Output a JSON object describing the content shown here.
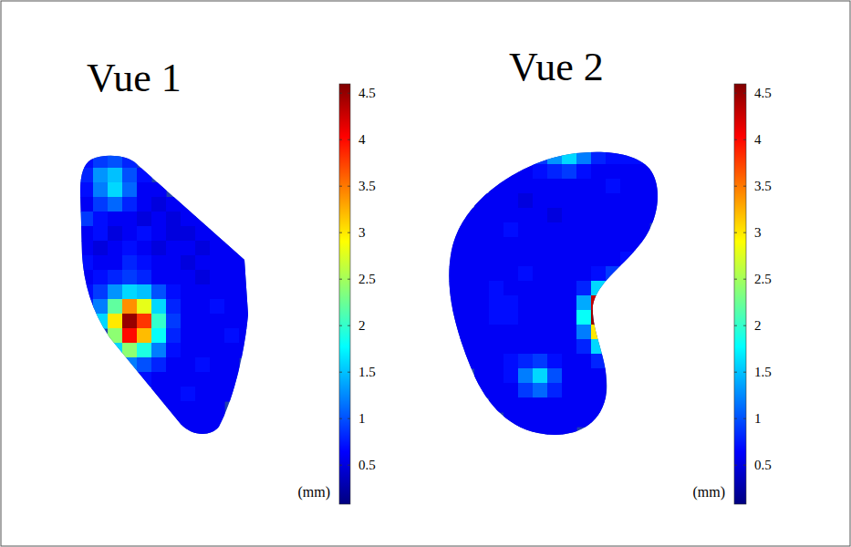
{
  "chart_data": [
    {
      "type": "heatmap",
      "title": "Vue 1",
      "clim": [
        0.08,
        4.6
      ],
      "cticks": [
        0.5,
        1,
        1.5,
        2,
        2.5,
        3,
        3.5,
        4,
        4.5
      ],
      "colorbar_label": "(mm)",
      "cells": [
        [
          0.7,
          0.9,
          1.0,
          0.8,
          null,
          null,
          null,
          null,
          null,
          null,
          null,
          null
        ],
        [
          0.8,
          1.3,
          1.5,
          1.0,
          0.7,
          null,
          null,
          null,
          null,
          null,
          null,
          null
        ],
        [
          0.7,
          1.2,
          1.6,
          1.1,
          0.6,
          0.6,
          null,
          null,
          null,
          null,
          null,
          null
        ],
        [
          0.6,
          0.9,
          1.1,
          0.8,
          0.6,
          0.5,
          0.6,
          0.6,
          null,
          null,
          null,
          null
        ],
        [
          0.9,
          0.7,
          0.6,
          0.6,
          0.5,
          0.6,
          0.5,
          0.6,
          0.6,
          null,
          null,
          null
        ],
        [
          0.6,
          0.7,
          0.5,
          0.6,
          0.7,
          0.6,
          0.5,
          0.5,
          0.6,
          0.6,
          null,
          null
        ],
        [
          0.6,
          0.5,
          0.6,
          0.7,
          0.6,
          0.5,
          0.6,
          0.6,
          0.5,
          0.6,
          0.6,
          null
        ],
        [
          0.7,
          0.6,
          0.6,
          0.8,
          0.7,
          0.6,
          0.6,
          0.5,
          0.6,
          0.6,
          0.6,
          0.6
        ],
        [
          0.6,
          0.7,
          0.8,
          0.9,
          0.8,
          0.6,
          0.6,
          0.6,
          0.5,
          0.6,
          0.6,
          0.6
        ],
        [
          0.7,
          0.9,
          1.3,
          1.6,
          1.5,
          1.0,
          0.7,
          0.6,
          0.6,
          0.6,
          0.6,
          0.6
        ],
        [
          0.8,
          1.2,
          2.2,
          3.4,
          2.8,
          1.6,
          0.8,
          0.6,
          0.6,
          0.7,
          0.6,
          0.6
        ],
        [
          null,
          1.6,
          3.0,
          4.5,
          3.8,
          2.0,
          0.9,
          0.6,
          0.6,
          0.6,
          0.6,
          0.6
        ],
        [
          null,
          null,
          2.4,
          4.0,
          3.2,
          1.8,
          0.8,
          0.6,
          0.6,
          0.6,
          0.7,
          0.6
        ],
        [
          null,
          null,
          1.6,
          2.4,
          1.9,
          1.2,
          0.7,
          0.6,
          0.6,
          0.6,
          0.6,
          0.6
        ],
        [
          null,
          null,
          null,
          1.2,
          1.0,
          0.8,
          0.6,
          0.6,
          0.7,
          0.6,
          0.6,
          null
        ],
        [
          null,
          null,
          null,
          null,
          0.7,
          0.6,
          0.6,
          0.6,
          0.6,
          0.6,
          0.6,
          null
        ],
        [
          null,
          null,
          null,
          null,
          null,
          0.6,
          0.6,
          0.7,
          0.6,
          0.6,
          0.6,
          null
        ],
        [
          null,
          null,
          null,
          null,
          null,
          0.6,
          0.6,
          0.6,
          0.6,
          0.6,
          null,
          null
        ],
        [
          null,
          null,
          null,
          null,
          null,
          null,
          0.6,
          0.6,
          0.6,
          0.6,
          null,
          null
        ],
        [
          null,
          null,
          null,
          null,
          null,
          null,
          null,
          0.6,
          0.6,
          0.6,
          null,
          null
        ]
      ]
    },
    {
      "type": "heatmap",
      "title": "Vue 2",
      "clim": [
        0.08,
        4.6
      ],
      "cticks": [
        0.5,
        1,
        1.5,
        2,
        2.5,
        3,
        3.5,
        4,
        4.5
      ],
      "colorbar_label": "(mm)",
      "cells": [
        [
          null,
          null,
          null,
          null,
          null,
          null,
          0.9,
          1.3,
          1.6,
          1.2,
          0.8,
          0.7,
          0.7,
          0.7,
          null
        ],
        [
          null,
          null,
          null,
          null,
          0.6,
          0.6,
          0.7,
          0.8,
          0.9,
          0.7,
          0.6,
          0.6,
          0.6,
          0.6,
          0.6
        ],
        [
          null,
          null,
          null,
          0.6,
          0.6,
          0.6,
          0.6,
          0.6,
          0.6,
          0.6,
          0.6,
          0.7,
          0.6,
          0.6,
          0.6
        ],
        [
          null,
          null,
          0.6,
          0.6,
          0.6,
          0.5,
          0.6,
          0.6,
          0.6,
          0.6,
          0.6,
          0.6,
          0.6,
          0.6,
          0.6
        ],
        [
          null,
          0.6,
          0.6,
          0.6,
          0.6,
          0.6,
          0.6,
          0.5,
          0.6,
          0.6,
          0.6,
          0.6,
          0.6,
          0.6,
          0.6
        ],
        [
          0.6,
          0.6,
          0.6,
          0.6,
          0.7,
          0.6,
          0.6,
          0.6,
          0.6,
          0.6,
          0.6,
          0.6,
          0.6,
          0.6,
          null
        ],
        [
          0.6,
          0.6,
          0.6,
          0.6,
          0.6,
          0.6,
          0.6,
          0.6,
          0.6,
          0.6,
          0.6,
          0.6,
          0.6,
          0.6,
          null
        ],
        [
          0.6,
          0.6,
          0.6,
          0.6,
          0.6,
          0.6,
          0.6,
          0.6,
          0.6,
          0.6,
          0.6,
          0.6,
          0.7,
          null,
          null
        ],
        [
          0.6,
          0.6,
          0.6,
          0.6,
          0.6,
          0.7,
          0.6,
          0.6,
          0.6,
          0.6,
          0.7,
          0.9,
          null,
          null,
          null
        ],
        [
          0.6,
          0.6,
          0.6,
          0.7,
          0.6,
          0.6,
          0.6,
          0.6,
          0.6,
          0.8,
          1.6,
          null,
          null,
          null,
          null
        ],
        [
          0.6,
          0.6,
          0.6,
          0.7,
          0.7,
          0.6,
          0.6,
          0.6,
          0.6,
          1.4,
          4.3,
          null,
          null,
          null,
          null
        ],
        [
          0.6,
          0.6,
          0.6,
          0.7,
          0.7,
          0.6,
          0.6,
          0.6,
          0.6,
          1.8,
          4.5,
          null,
          null,
          null,
          null
        ],
        [
          0.6,
          0.6,
          0.6,
          0.6,
          0.6,
          0.6,
          0.6,
          0.6,
          0.6,
          1.2,
          3.0,
          null,
          null,
          null,
          null
        ],
        [
          null,
          0.6,
          0.6,
          0.6,
          0.6,
          0.6,
          0.6,
          0.6,
          0.6,
          0.8,
          1.6,
          null,
          null,
          null,
          null
        ],
        [
          null,
          0.6,
          0.6,
          0.6,
          0.7,
          0.8,
          0.9,
          0.7,
          0.6,
          0.6,
          0.8,
          null,
          null,
          null,
          null
        ],
        [
          null,
          null,
          0.6,
          0.6,
          0.7,
          1.2,
          1.6,
          1.0,
          0.6,
          0.6,
          0.6,
          null,
          null,
          null,
          null
        ],
        [
          null,
          null,
          0.6,
          0.6,
          0.6,
          0.9,
          1.1,
          0.8,
          0.6,
          0.6,
          0.6,
          null,
          null,
          null,
          null
        ],
        [
          null,
          null,
          null,
          0.6,
          0.6,
          0.6,
          0.6,
          0.6,
          0.6,
          0.6,
          0.6,
          null,
          null,
          null,
          null
        ],
        [
          null,
          null,
          null,
          null,
          0.6,
          0.6,
          0.6,
          0.6,
          0.6,
          0.6,
          0.6,
          null,
          null,
          null,
          null
        ],
        [
          null,
          null,
          null,
          null,
          null,
          0.6,
          0.6,
          0.6,
          0.6,
          null,
          null,
          null,
          null,
          null,
          null
        ]
      ]
    }
  ]
}
